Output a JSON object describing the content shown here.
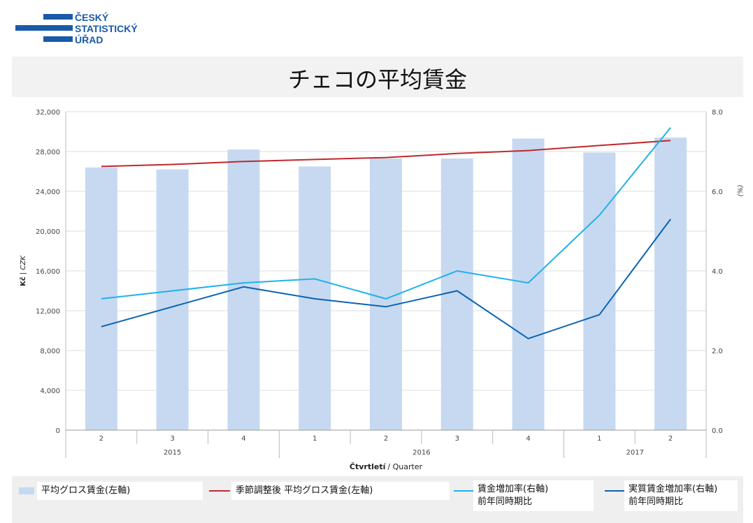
{
  "logo": {
    "line1": "ČESKÝ",
    "line2": "STATISTICKÝ",
    "line3": "ÚŘAD",
    "color": "#1a5aa8"
  },
  "title": "チェコの平均賃金",
  "chart_data": {
    "type": "bar",
    "x_quarters": [
      "2",
      "3",
      "4",
      "1",
      "2",
      "3",
      "4",
      "1",
      "2"
    ],
    "x_years": [
      {
        "label": "2015",
        "start": 0,
        "end": 3
      },
      {
        "label": "2016",
        "start": 3,
        "end": 7
      },
      {
        "label": "2017",
        "start": 7,
        "end": 9
      }
    ],
    "xlabel_main": "Čtvrtletí",
    "xlabel_sub": "/ Quarter",
    "ylabel_left_main": "Kč",
    "ylabel_left_sub": "| CZK",
    "ylabel_right": "(%)",
    "ylim_left": [
      0,
      32000
    ],
    "yticks_left": [
      "0",
      "4,000",
      "8,000",
      "12,000",
      "16,000",
      "20,000",
      "24,000",
      "28,000",
      "32,000"
    ],
    "ylim_right": [
      0,
      8
    ],
    "yticks_right": [
      "0.0",
      "2.0",
      "4.0",
      "6.0",
      "8.0"
    ],
    "grid": true,
    "series": [
      {
        "name": "平均グロス賃金(左軸)",
        "type": "bar",
        "axis": "left",
        "color": "#c6d9f1",
        "values": [
          26400,
          26200,
          28200,
          26500,
          27300,
          27300,
          29300,
          27900,
          29400
        ]
      },
      {
        "name": "季節調整後 平均グロス賃金(左軸)",
        "type": "line",
        "axis": "left",
        "color": "#c0282c",
        "values": [
          26500,
          26700,
          27000,
          27200,
          27400,
          27800,
          28100,
          28600,
          29100
        ]
      },
      {
        "name": "賃金増加率(右軸)",
        "name2": "前年同時期比",
        "type": "line",
        "axis": "right",
        "color": "#1fb2ea",
        "values": [
          3.3,
          3.5,
          3.7,
          3.8,
          3.3,
          4.0,
          3.7,
          5.4,
          7.6
        ]
      },
      {
        "name": "実質賃金増加率(右軸)",
        "name2": "前年同時期比",
        "type": "line",
        "axis": "right",
        "color": "#0a63b3",
        "values": [
          2.6,
          3.1,
          3.6,
          3.3,
          3.1,
          3.5,
          2.3,
          2.9,
          5.3
        ]
      }
    ]
  }
}
